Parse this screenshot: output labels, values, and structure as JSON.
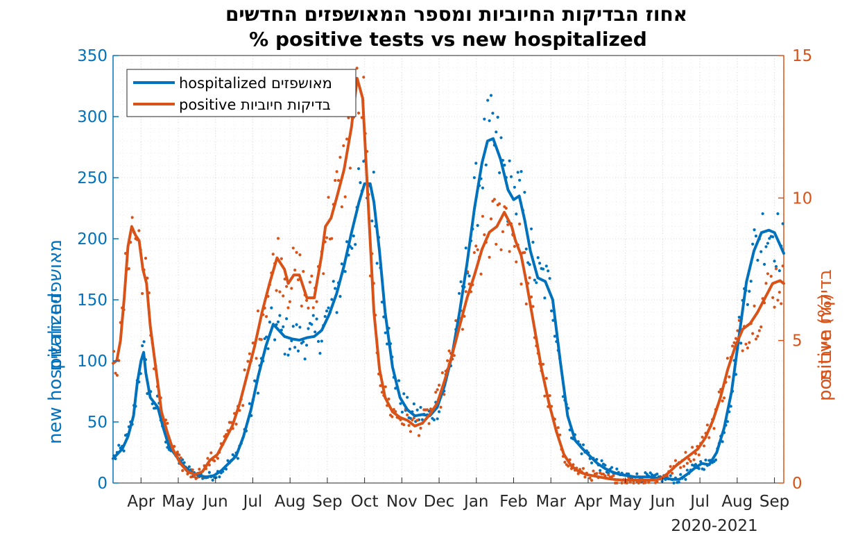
{
  "chart_data": {
    "type": "line",
    "title_he": "אחוז הבדיקות החיוביות ומספר המאושפזים החדשים",
    "title_en": "% positive tests vs new hospitalized",
    "xlabel": "2020-2021",
    "ylabel_left_en": "new hospitalized",
    "ylabel_left_he": "מאושפזים חדשים",
    "ylabel_right_en": "positive (%)",
    "ylabel_right_he": "בדיקות חיוביות",
    "ylim_left": [
      0,
      350
    ],
    "ylim_right": [
      0,
      15
    ],
    "yticks_left": [
      "0",
      "50",
      "100",
      "150",
      "200",
      "250",
      "300",
      "350"
    ],
    "yticks_right": [
      "0",
      "5",
      "10",
      "15"
    ],
    "x_range_months": [
      0,
      18
    ],
    "xticks": [
      {
        "label": "Apr",
        "m": 0.75
      },
      {
        "label": "May",
        "m": 1.75
      },
      {
        "label": "Jun",
        "m": 2.75
      },
      {
        "label": "Jul",
        "m": 3.75
      },
      {
        "label": "Aug",
        "m": 4.75
      },
      {
        "label": "Sep",
        "m": 5.75
      },
      {
        "label": "Oct",
        "m": 6.75
      },
      {
        "label": "Nov",
        "m": 7.75
      },
      {
        "label": "Dec",
        "m": 8.75
      },
      {
        "label": "Jan",
        "m": 9.75
      },
      {
        "label": "Feb",
        "m": 10.75
      },
      {
        "label": "Mar",
        "m": 11.75
      },
      {
        "label": "Apr",
        "m": 12.75
      },
      {
        "label": "May",
        "m": 13.75
      },
      {
        "label": "Jun",
        "m": 14.75
      },
      {
        "label": "Jul",
        "m": 15.75
      },
      {
        "label": "Aug",
        "m": 16.75
      },
      {
        "label": "Sep",
        "m": 17.75
      }
    ],
    "legend": {
      "placement": "top-left",
      "entries": [
        "hospitalized מאושפזים",
        "positive בדיקות חיוביות"
      ]
    },
    "grid": true,
    "colors": {
      "hospitalized": "#0072BD",
      "positive": "#D95319",
      "grid": "#d9d9d9"
    },
    "series": [
      {
        "name": "hospitalized מאושפזים",
        "axis": "left",
        "x": [
          0,
          0.25,
          0.4,
          0.55,
          0.65,
          0.75,
          0.82,
          0.88,
          1.0,
          1.1,
          1.2,
          1.35,
          1.5,
          1.7,
          1.9,
          2.1,
          2.3,
          2.5,
          2.7,
          2.9,
          3.1,
          3.3,
          3.5,
          3.7,
          3.9,
          4.1,
          4.3,
          4.45,
          4.6,
          4.8,
          5.0,
          5.2,
          5.4,
          5.6,
          5.8,
          6.0,
          6.2,
          6.4,
          6.6,
          6.75,
          6.9,
          7.0,
          7.15,
          7.3,
          7.5,
          7.7,
          7.9,
          8.1,
          8.3,
          8.5,
          8.7,
          8.9,
          9.1,
          9.3,
          9.5,
          9.7,
          9.9,
          10.05,
          10.2,
          10.4,
          10.6,
          10.75,
          10.9,
          11.05,
          11.2,
          11.4,
          11.6,
          11.8,
          12.0,
          12.2,
          12.4,
          12.6,
          12.8,
          13.0,
          13.2,
          13.4,
          13.6,
          13.8,
          14.0,
          14.2,
          14.4,
          14.6,
          14.8,
          15.0,
          15.2,
          15.4,
          15.6,
          15.8,
          16.0,
          16.2,
          16.4,
          16.6,
          16.8,
          17.0,
          17.2,
          17.4,
          17.6,
          17.75,
          17.9,
          18.0
        ],
        "values": [
          20,
          28,
          38,
          55,
          82,
          100,
          107,
          90,
          70,
          66,
          62,
          45,
          30,
          22,
          14,
          9,
          6,
          5,
          6,
          10,
          16,
          22,
          38,
          60,
          88,
          112,
          130,
          125,
          120,
          118,
          117,
          119,
          120,
          125,
          138,
          155,
          178,
          205,
          230,
          245,
          245,
          230,
          190,
          140,
          95,
          70,
          60,
          55,
          56,
          55,
          62,
          80,
          105,
          140,
          180,
          225,
          262,
          280,
          282,
          265,
          240,
          232,
          235,
          215,
          190,
          168,
          165,
          150,
          100,
          55,
          35,
          28,
          22,
          16,
          12,
          9,
          7,
          6,
          5,
          5,
          5,
          4,
          4,
          3,
          3,
          7,
          12,
          16,
          15,
          25,
          45,
          75,
          120,
          165,
          190,
          205,
          207,
          205,
          195,
          188
        ]
      },
      {
        "name": "positive בדיקות חיוביות",
        "axis": "right",
        "x": [
          0,
          0.1,
          0.2,
          0.3,
          0.4,
          0.5,
          0.6,
          0.7,
          0.8,
          0.9,
          1.0,
          1.1,
          1.2,
          1.3,
          1.45,
          1.6,
          1.8,
          2.0,
          2.2,
          2.4,
          2.6,
          2.8,
          3.0,
          3.2,
          3.4,
          3.6,
          3.8,
          4.0,
          4.2,
          4.4,
          4.6,
          4.7,
          4.85,
          5.0,
          5.2,
          5.4,
          5.6,
          5.7,
          5.85,
          6.0,
          6.2,
          6.4,
          6.55,
          6.7,
          6.8,
          6.9,
          7.0,
          7.15,
          7.3,
          7.5,
          7.7,
          7.9,
          8.1,
          8.3,
          8.5,
          8.7,
          8.9,
          9.1,
          9.3,
          9.5,
          9.7,
          9.9,
          10.1,
          10.3,
          10.5,
          10.7,
          10.8,
          10.95,
          11.1,
          11.3,
          11.5,
          11.7,
          11.9,
          12.1,
          12.3,
          12.5,
          12.7,
          12.9,
          13.1,
          13.3,
          13.5,
          13.7,
          13.9,
          14.1,
          14.3,
          14.5,
          14.7,
          14.9,
          15.1,
          15.3,
          15.5,
          15.7,
          15.9,
          16.1,
          16.3,
          16.5,
          16.7,
          16.9,
          17.1,
          17.3,
          17.5,
          17.7,
          17.9,
          18.0
        ],
        "values": [
          4.2,
          4.3,
          5.0,
          6.5,
          8.3,
          9.0,
          8.7,
          8.5,
          7.5,
          7.0,
          5.5,
          4.5,
          3.5,
          2.5,
          1.8,
          1.2,
          0.7,
          0.4,
          0.3,
          0.4,
          0.8,
          1.0,
          1.5,
          2.0,
          2.8,
          3.8,
          4.8,
          6.0,
          7.0,
          7.9,
          7.5,
          7.0,
          7.3,
          7.3,
          6.5,
          6.5,
          8.0,
          9.0,
          9.3,
          10.0,
          11.0,
          12.5,
          14.2,
          13.5,
          11.0,
          8.5,
          6.0,
          4.0,
          3.0,
          2.5,
          2.3,
          2.2,
          2.0,
          2.1,
          2.4,
          2.8,
          3.6,
          4.5,
          5.5,
          6.5,
          7.3,
          8.2,
          8.8,
          9.0,
          9.5,
          9.0,
          8.5,
          8.0,
          7.0,
          5.5,
          4.0,
          2.8,
          1.8,
          1.0,
          0.6,
          0.4,
          0.3,
          0.25,
          0.2,
          0.15,
          0.12,
          0.1,
          0.1,
          0.1,
          0.1,
          0.1,
          0.15,
          0.35,
          0.6,
          0.8,
          1.0,
          1.2,
          1.6,
          2.2,
          3.0,
          4.0,
          4.8,
          5.4,
          5.6,
          6.0,
          6.5,
          7.0,
          7.1,
          7.0
        ]
      }
    ]
  }
}
